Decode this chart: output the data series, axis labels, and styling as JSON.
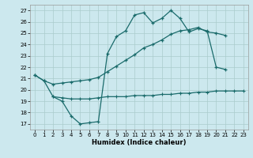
{
  "xlabel": "Humidex (Indice chaleur)",
  "bg_color": "#cce8ee",
  "grid_color": "#aacccc",
  "line_color": "#1a6b6b",
  "xlim": [
    -0.5,
    23.5
  ],
  "ylim": [
    16.5,
    27.5
  ],
  "yticks": [
    17,
    18,
    19,
    20,
    21,
    22,
    23,
    24,
    25,
    26,
    27
  ],
  "xticks": [
    0,
    1,
    2,
    3,
    4,
    5,
    6,
    7,
    8,
    9,
    10,
    11,
    12,
    13,
    14,
    15,
    16,
    17,
    18,
    19,
    20,
    21,
    22,
    23
  ],
  "line1_x": [
    0,
    1,
    2,
    3,
    4,
    5,
    6,
    7,
    8,
    9,
    10,
    11,
    12,
    13,
    14,
    15,
    16,
    17,
    18,
    19,
    20,
    21
  ],
  "line1_y": [
    21.3,
    20.8,
    19.4,
    19.0,
    17.7,
    17.0,
    17.1,
    17.2,
    23.2,
    24.7,
    25.2,
    26.6,
    26.8,
    25.9,
    26.3,
    27.0,
    26.3,
    25.1,
    25.4,
    25.2,
    22.0,
    21.8
  ],
  "line2_x": [
    0,
    1,
    2,
    3,
    4,
    5,
    6,
    7,
    8,
    9,
    10,
    11,
    12,
    13,
    14,
    15,
    16,
    17,
    18,
    19,
    20,
    21
  ],
  "line2_y": [
    21.3,
    20.8,
    20.5,
    20.6,
    20.7,
    20.8,
    20.9,
    21.1,
    21.6,
    22.1,
    22.6,
    23.1,
    23.7,
    24.0,
    24.4,
    24.9,
    25.2,
    25.3,
    25.5,
    25.1,
    25.0,
    24.8
  ],
  "line3_x": [
    2,
    3,
    4,
    5,
    6,
    7,
    8,
    9,
    10,
    11,
    12,
    13,
    14,
    15,
    16,
    17,
    18,
    19,
    20,
    21,
    22,
    23
  ],
  "line3_y": [
    19.4,
    19.3,
    19.2,
    19.2,
    19.2,
    19.3,
    19.4,
    19.4,
    19.4,
    19.5,
    19.5,
    19.5,
    19.6,
    19.6,
    19.7,
    19.7,
    19.8,
    19.8,
    19.9,
    19.9,
    19.9,
    19.9
  ]
}
